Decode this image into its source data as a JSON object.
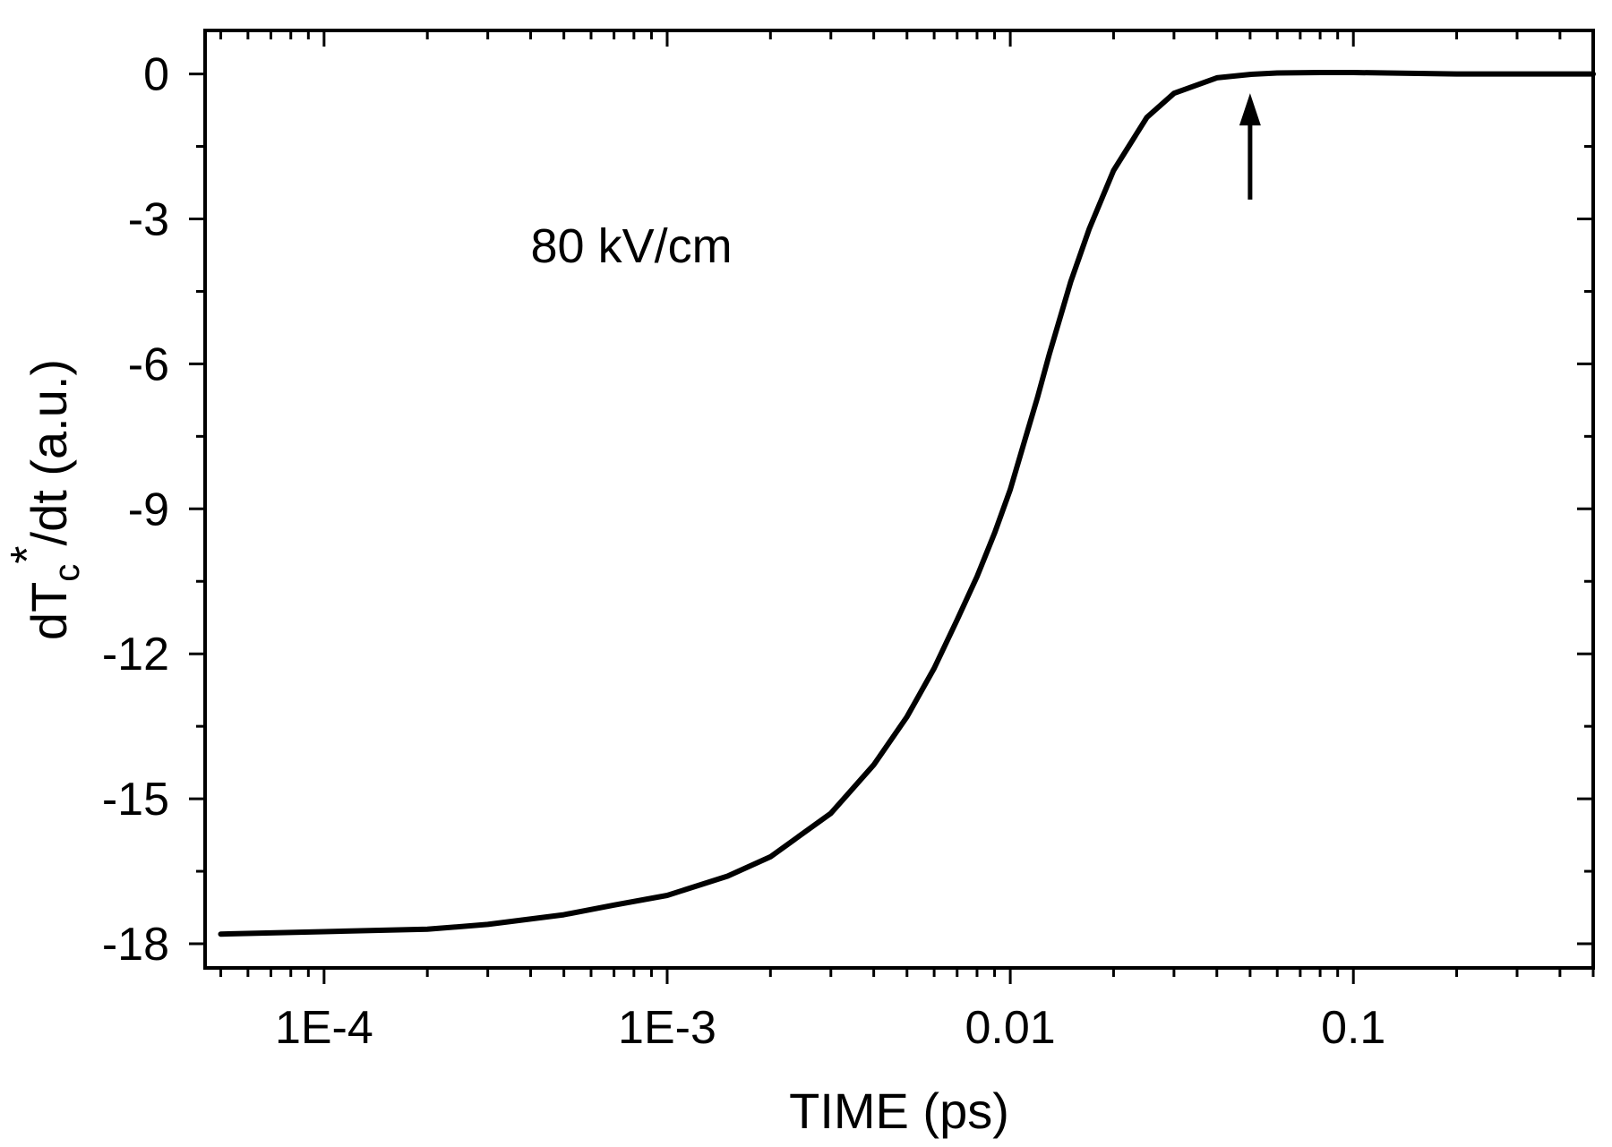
{
  "chart_data": {
    "type": "line",
    "title": "",
    "xlabel": "TIME (ps)",
    "ylabel": {
      "prefix": "dT",
      "subscript": "c",
      "superscript": "*",
      "suffix": "/dt  (a.u.)"
    },
    "xscale": "log",
    "xlim": [
      4.5e-05,
      0.5
    ],
    "ylim": [
      -18.5,
      0.9
    ],
    "x_ticks": [
      {
        "value": 0.0001,
        "label": "1E-4"
      },
      {
        "value": 0.001,
        "label": "1E-3"
      },
      {
        "value": 0.01,
        "label": "0.01"
      },
      {
        "value": 0.1,
        "label": "0.1"
      }
    ],
    "y_ticks": [
      {
        "value": 0,
        "label": "0"
      },
      {
        "value": -3,
        "label": "-3"
      },
      {
        "value": -6,
        "label": "-6"
      },
      {
        "value": -9,
        "label": "-9"
      },
      {
        "value": -12,
        "label": "-12"
      },
      {
        "value": -15,
        "label": "-15"
      },
      {
        "value": -18,
        "label": "-18"
      }
    ],
    "y_minor_step": 1.5,
    "series": [
      {
        "name": "80 kV/cm",
        "color": "#000000",
        "x": [
          5e-05,
          0.0001,
          0.0002,
          0.0003,
          0.0005,
          0.0007,
          0.001,
          0.0015,
          0.002,
          0.003,
          0.004,
          0.005,
          0.006,
          0.007,
          0.008,
          0.009,
          0.01,
          0.011,
          0.012,
          0.013,
          0.015,
          0.017,
          0.02,
          0.025,
          0.03,
          0.04,
          0.05,
          0.06,
          0.08,
          0.1,
          0.2,
          0.5
        ],
        "y": [
          -17.8,
          -17.75,
          -17.7,
          -17.6,
          -17.4,
          -17.2,
          -17.0,
          -16.6,
          -16.2,
          -15.3,
          -14.3,
          -13.3,
          -12.3,
          -11.3,
          -10.4,
          -9.5,
          -8.6,
          -7.6,
          -6.7,
          -5.8,
          -4.3,
          -3.2,
          -2.0,
          -0.9,
          -0.4,
          -0.08,
          -0.01,
          0.02,
          0.03,
          0.03,
          0.0,
          0.0
        ]
      }
    ],
    "annotations": [
      {
        "text": "80 kV/cm",
        "x": 0.0004,
        "y": -3.9
      },
      {
        "type": "arrow",
        "x": 0.05,
        "y_from": -2.6,
        "y_to": -0.4
      }
    ]
  }
}
